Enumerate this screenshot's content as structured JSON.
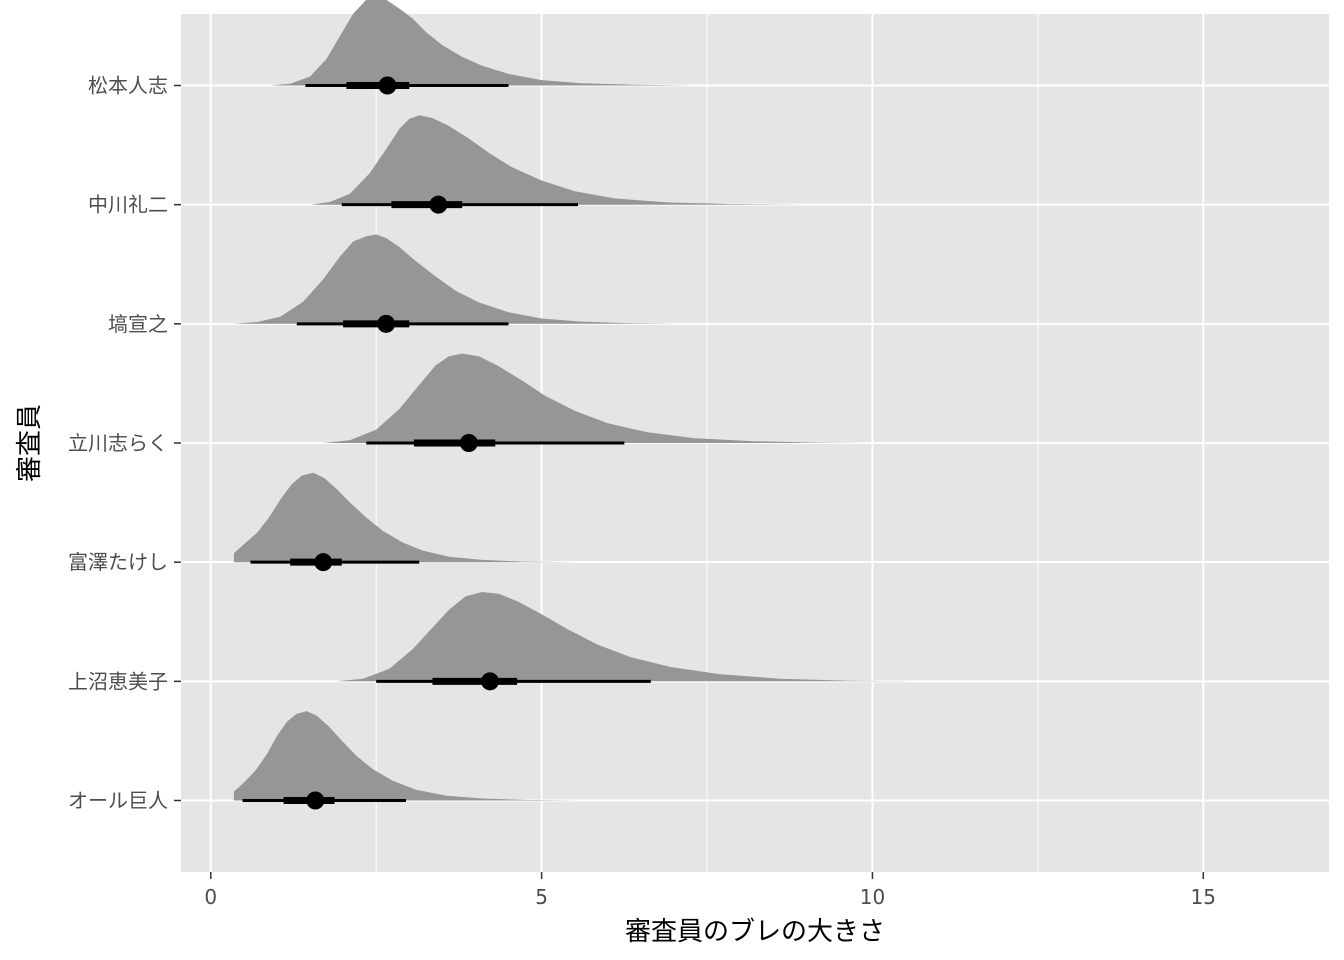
{
  "chart_data": {
    "type": "halfeye",
    "title": "",
    "xlabel": "審査員のブレの大きさ",
    "ylabel": "審査員",
    "xlim": [
      -0.45,
      16.9
    ],
    "xticks": [
      0,
      5,
      10,
      15
    ],
    "xtick_labels": [
      "0",
      "5",
      "10",
      "15"
    ],
    "grid": true,
    "legend": "none",
    "colors": {
      "panel": "#e5e5e5",
      "grid": "#ffffff",
      "density": "#969696",
      "interval": "#000000",
      "tick_text": "#4d4d4d"
    },
    "categories": [
      "松本人志",
      "中川礼二",
      "塙宣之",
      "立川志らく",
      "富澤たけし",
      "上沼恵美子",
      "オール巨人"
    ],
    "series": [
      {
        "category": "松本人志",
        "median": 2.67,
        "interval_66": [
          2.05,
          3.0
        ],
        "interval_95": [
          1.43,
          4.5
        ],
        "density": {
          "x": [
            0.9,
            1.2,
            1.5,
            1.75,
            1.95,
            2.15,
            2.35,
            2.5,
            2.65,
            2.85,
            3.05,
            3.25,
            3.5,
            3.8,
            4.1,
            4.5,
            5.0,
            5.6,
            6.4,
            7.3
          ],
          "y": [
            0,
            0.02,
            0.1,
            0.3,
            0.55,
            0.8,
            0.96,
            1.0,
            0.96,
            0.86,
            0.75,
            0.6,
            0.45,
            0.32,
            0.22,
            0.13,
            0.06,
            0.025,
            0.008,
            0
          ]
        }
      },
      {
        "category": "中川礼二",
        "median": 3.44,
        "interval_66": [
          2.73,
          3.8
        ],
        "interval_95": [
          1.98,
          5.55
        ],
        "density": {
          "x": [
            1.5,
            1.8,
            2.1,
            2.4,
            2.65,
            2.85,
            3.0,
            3.15,
            3.35,
            3.6,
            3.9,
            4.2,
            4.55,
            5.0,
            5.5,
            6.1,
            6.9,
            7.9,
            9.0
          ],
          "y": [
            0,
            0.03,
            0.12,
            0.35,
            0.62,
            0.85,
            0.96,
            1.0,
            0.97,
            0.88,
            0.74,
            0.58,
            0.42,
            0.27,
            0.15,
            0.07,
            0.025,
            0.006,
            0
          ]
        }
      },
      {
        "category": "塙宣之",
        "median": 2.65,
        "interval_66": [
          2.0,
          3.0
        ],
        "interval_95": [
          1.3,
          4.5
        ],
        "density": {
          "x": [
            0.35,
            0.7,
            1.05,
            1.4,
            1.7,
            1.95,
            2.15,
            2.35,
            2.5,
            2.65,
            2.85,
            3.1,
            3.4,
            3.7,
            4.05,
            4.5,
            5.0,
            5.6,
            6.3,
            7.1
          ],
          "y": [
            0,
            0.02,
            0.08,
            0.25,
            0.5,
            0.75,
            0.92,
            0.98,
            1.0,
            0.96,
            0.86,
            0.7,
            0.53,
            0.37,
            0.24,
            0.13,
            0.06,
            0.025,
            0.008,
            0
          ]
        }
      },
      {
        "category": "立川志らく",
        "median": 3.9,
        "interval_66": [
          3.07,
          4.3
        ],
        "interval_95": [
          2.35,
          6.25
        ],
        "density": {
          "x": [
            1.7,
            2.1,
            2.5,
            2.85,
            3.15,
            3.4,
            3.6,
            3.8,
            4.05,
            4.35,
            4.7,
            5.05,
            5.5,
            6.0,
            6.6,
            7.3,
            8.2,
            9.2,
            10.0
          ],
          "y": [
            0,
            0.03,
            0.15,
            0.38,
            0.65,
            0.87,
            0.97,
            1.0,
            0.97,
            0.86,
            0.7,
            0.53,
            0.36,
            0.22,
            0.12,
            0.055,
            0.02,
            0.005,
            0
          ]
        }
      },
      {
        "category": "富澤たけし",
        "median": 1.7,
        "interval_66": [
          1.2,
          1.98
        ],
        "interval_95": [
          0.6,
          3.15
        ],
        "density": {
          "x": [
            0.35,
            0.5,
            0.7,
            0.88,
            1.05,
            1.22,
            1.38,
            1.55,
            1.72,
            1.9,
            2.1,
            2.35,
            2.6,
            2.9,
            3.2,
            3.6,
            4.1,
            4.7,
            5.5
          ],
          "y": [
            0.1,
            0.2,
            0.33,
            0.5,
            0.7,
            0.87,
            0.97,
            1.0,
            0.94,
            0.82,
            0.67,
            0.5,
            0.35,
            0.22,
            0.13,
            0.06,
            0.025,
            0.008,
            0
          ]
        }
      },
      {
        "category": "上沼恵美子",
        "median": 4.22,
        "interval_66": [
          3.35,
          4.63
        ],
        "interval_95": [
          2.5,
          6.65
        ],
        "density": {
          "x": [
            1.9,
            2.3,
            2.7,
            3.05,
            3.35,
            3.6,
            3.85,
            4.1,
            4.35,
            4.65,
            5.0,
            5.4,
            5.85,
            6.35,
            6.95,
            7.7,
            8.6,
            9.6,
            10.6
          ],
          "y": [
            0,
            0.03,
            0.14,
            0.36,
            0.6,
            0.8,
            0.95,
            1.0,
            0.98,
            0.89,
            0.75,
            0.58,
            0.41,
            0.27,
            0.16,
            0.08,
            0.03,
            0.008,
            0
          ]
        }
      },
      {
        "category": "オール巨人",
        "median": 1.58,
        "interval_66": [
          1.1,
          1.87
        ],
        "interval_95": [
          0.48,
          2.95
        ],
        "density": {
          "x": [
            0.35,
            0.5,
            0.68,
            0.85,
            1.0,
            1.15,
            1.3,
            1.45,
            1.6,
            1.78,
            1.98,
            2.2,
            2.45,
            2.75,
            3.1,
            3.55,
            4.1,
            4.8,
            5.6
          ],
          "y": [
            0.1,
            0.2,
            0.34,
            0.52,
            0.72,
            0.88,
            0.97,
            1.0,
            0.95,
            0.83,
            0.67,
            0.5,
            0.35,
            0.22,
            0.12,
            0.055,
            0.022,
            0.006,
            0
          ]
        }
      }
    ]
  }
}
